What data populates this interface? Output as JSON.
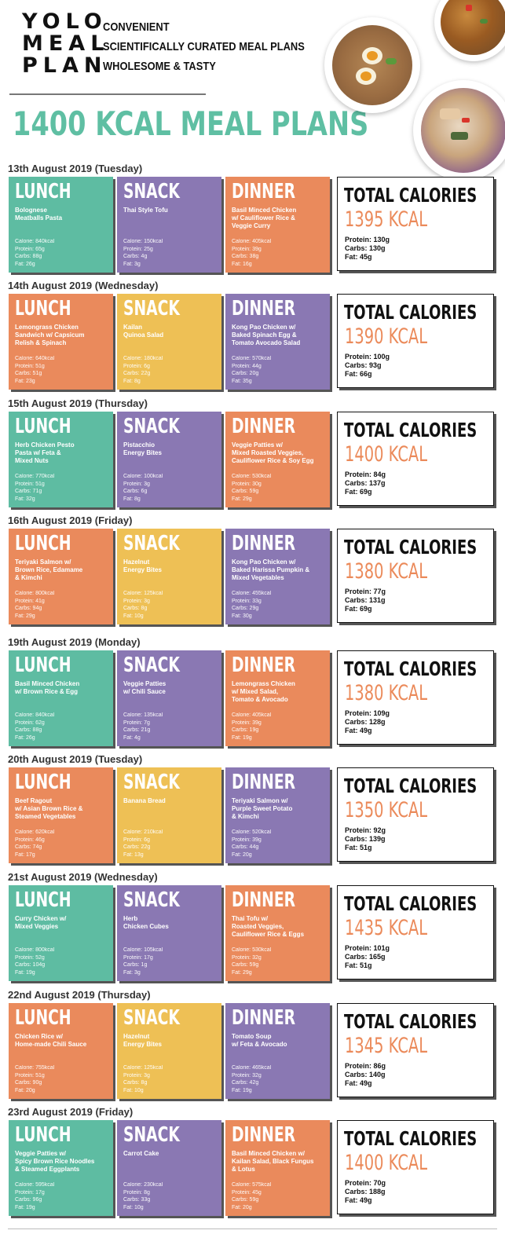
{
  "brand": {
    "logo_lines": [
      "YOLO",
      "MEAL",
      "PLAN"
    ],
    "taglines": [
      "CONVENIENT",
      "SCIENTIFICALLY CURATED MEAL PLANS",
      "WHOLESOME & TASTY"
    ]
  },
  "page_title": "1400 KCAL MEAL PLANS",
  "colors": {
    "teal": "#5ebca2",
    "purple": "#8a78b3",
    "orange": "#ea8a5c",
    "yellow": "#eec055",
    "title": "#5fbfa3",
    "kcal": "#eb8a5a"
  },
  "days": [
    {
      "date": "13th August 2019 (Tuesday)",
      "meals": [
        {
          "kind": "LUNCH",
          "color": "#5ebca2",
          "name": "Bolognese\nMeatballs Pasta",
          "calorie": "Calorie: 840kcal",
          "protein": "Protein: 65g",
          "carbs": "Carbs: 88g",
          "fat": "Fat: 26g"
        },
        {
          "kind": "SNACK",
          "color": "#8a78b3",
          "name": "Thai Style Tofu",
          "calorie": "Calorie: 150kcal",
          "protein": "Protein: 25g",
          "carbs": "Carbs: 4g",
          "fat": "Fat: 3g"
        },
        {
          "kind": "DINNER",
          "color": "#ea8a5c",
          "name": "Basil Minced Chicken\nw/ Cauliflower Rice &\nVeggie Curry",
          "calorie": "Calorie: 405kcal",
          "protein": "Protein: 39g",
          "carbs": "Carbs: 38g",
          "fat": "Fat: 16g"
        }
      ],
      "total": {
        "label": "TOTAL CALORIES",
        "kcal": "1395 KCAL",
        "protein": "Protein: 130g",
        "carbs": "Carbs: 130g",
        "fat": "Fat: 45g"
      }
    },
    {
      "date": "14th August 2019 (Wednesday)",
      "meals": [
        {
          "kind": "LUNCH",
          "color": "#ea8a5c",
          "name": "Lemongrass Chicken\nSandwich w/ Capsicum\nRelish & Spinach",
          "calorie": "Calorie: 640kcal",
          "protein": "Protein: 51g",
          "carbs": "Carbs: 51g",
          "fat": "Fat: 23g"
        },
        {
          "kind": "SNACK",
          "color": "#eec055",
          "name": "Kailan\nQuinoa Salad",
          "calorie": "Calorie: 180kcal",
          "protein": "Protein: 6g",
          "carbs": "Carbs: 22g",
          "fat": "Fat: 8g"
        },
        {
          "kind": "DINNER",
          "color": "#8a78b3",
          "name": "Kong Pao Chicken w/\nBaked Spinach Egg &\nTomato Avocado Salad",
          "calorie": "Calorie: 570kcal",
          "protein": "Protein: 44g",
          "carbs": "Carbs: 20g",
          "fat": "Fat: 35g"
        }
      ],
      "total": {
        "label": "TOTAL CALORIES",
        "kcal": "1390 KCAL",
        "protein": "Protein: 100g",
        "carbs": "Carbs: 93g",
        "fat": "Fat: 66g"
      }
    },
    {
      "date": "15th August 2019 (Thursday)",
      "meals": [
        {
          "kind": "LUNCH",
          "color": "#5ebca2",
          "name": "Herb Chicken Pesto\nPasta w/ Feta &\nMixed Nuts",
          "calorie": "Calorie: 770kcal",
          "protein": "Protein: 51g",
          "carbs": "Carbs: 71g",
          "fat": "Fat: 32g"
        },
        {
          "kind": "SNACK",
          "color": "#8a78b3",
          "name": "Pistacchio\nEnergy Bites",
          "calorie": "Calorie: 100kcal",
          "protein": "Protein: 3g",
          "carbs": "Carbs: 6g",
          "fat": "Fat: 8g"
        },
        {
          "kind": "DINNER",
          "color": "#ea8a5c",
          "name": "Veggie Patties w/\nMixed Roasted Veggies,\nCauliflower Rice & Soy Egg",
          "calorie": "Calorie: 530kcal",
          "protein": "Protein: 30g",
          "carbs": "Carbs: 59g",
          "fat": "Fat: 29g"
        }
      ],
      "total": {
        "label": "TOTAL CALORIES",
        "kcal": "1400 KCAL",
        "protein": "Protein: 84g",
        "carbs": "Carbs: 137g",
        "fat": "Fat: 69g"
      }
    },
    {
      "date": "16th August 2019 (Friday)",
      "meals": [
        {
          "kind": "LUNCH",
          "color": "#ea8a5c",
          "name": "Teriyaki Salmon w/\nBrown Rice, Edamame\n& Kimchi",
          "calorie": "Calorie: 800kcal",
          "protein": "Protein: 41g",
          "carbs": "Carbs: 94g",
          "fat": "Fat: 29g"
        },
        {
          "kind": "SNACK",
          "color": "#eec055",
          "name": "Hazelnut\nEnergy Bites",
          "calorie": "Calorie: 125kcal",
          "protein": "Protein: 3g",
          "carbs": "Carbs: 8g",
          "fat": "Fat: 10g"
        },
        {
          "kind": "DINNER",
          "color": "#8a78b3",
          "name": "Kong Pao Chicken w/\nBaked Harissa Pumpkin &\nMixed Vegetables",
          "calorie": "Calorie: 455kcal",
          "protein": "Protein: 33g",
          "carbs": "Carbs: 29g",
          "fat": "Fat: 30g"
        }
      ],
      "total": {
        "label": "TOTAL CALORIES",
        "kcal": "1380 KCAL",
        "protein": "Protein: 77g",
        "carbs": "Carbs: 131g",
        "fat": "Fat: 69g"
      }
    },
    {
      "date": "19th August 2019 (Monday)",
      "meals": [
        {
          "kind": "LUNCH",
          "color": "#5ebca2",
          "name": "Basil Minced Chicken\nw/ Brown Rice & Egg",
          "calorie": "Calorie: 840kcal",
          "protein": "Protein: 62g",
          "carbs": "Carbs: 88g",
          "fat": "Fat: 26g"
        },
        {
          "kind": "SNACK",
          "color": "#8a78b3",
          "name": "Veggie Patties\nw/ Chili Sauce",
          "calorie": "Calorie: 135kcal",
          "protein": "Protein: 7g",
          "carbs": "Carbs: 21g",
          "fat": "Fat: 4g"
        },
        {
          "kind": "DINNER",
          "color": "#ea8a5c",
          "name": "Lemongrass Chicken\nw/ Mixed Salad,\nTomato & Avocado",
          "calorie": "Calorie: 405kcal",
          "protein": "Protein: 39g",
          "carbs": "Carbs: 19g",
          "fat": "Fat: 19g"
        }
      ],
      "total": {
        "label": "TOTAL CALORIES",
        "kcal": "1380 KCAL",
        "protein": "Protein: 109g",
        "carbs": "Carbs: 128g",
        "fat": "Fat: 49g"
      }
    },
    {
      "date": "20th August 2019 (Tuesday)",
      "meals": [
        {
          "kind": "LUNCH",
          "color": "#ea8a5c",
          "name": "Beef Ragout\nw/ Asian Brown Rice &\nSteamed Vegetables",
          "calorie": "Calorie: 620kcal",
          "protein": "Protein: 46g",
          "carbs": "Carbs: 74g",
          "fat": "Fat: 17g"
        },
        {
          "kind": "SNACK",
          "color": "#eec055",
          "name": "Banana Bread",
          "calorie": "Calorie: 210kcal",
          "protein": "Protein: 6g",
          "carbs": "Carbs: 22g",
          "fat": "Fat: 13g"
        },
        {
          "kind": "DINNER",
          "color": "#8a78b3",
          "name": "Teriyaki Salmon w/\nPurple Sweet Potato\n& Kimchi",
          "calorie": "Calorie: 520kcal",
          "protein": "Protein: 39g",
          "carbs": "Carbs: 44g",
          "fat": "Fat: 20g"
        }
      ],
      "total": {
        "label": "TOTAL CALORIES",
        "kcal": "1350 KCAL",
        "protein": "Protein: 92g",
        "carbs": "Carbs: 139g",
        "fat": "Fat: 51g"
      }
    },
    {
      "date": "21st August 2019 (Wednesday)",
      "meals": [
        {
          "kind": "LUNCH",
          "color": "#5ebca2",
          "name": "Curry Chicken w/\nMixed Veggies",
          "calorie": "Calorie: 800kcal",
          "protein": "Protein: 52g",
          "carbs": "Carbs: 104g",
          "fat": "Fat: 19g"
        },
        {
          "kind": "SNACK",
          "color": "#8a78b3",
          "name": "Herb\nChicken Cubes",
          "calorie": "Calorie: 105kcal",
          "protein": "Protein: 17g",
          "carbs": "Carbs: 1g",
          "fat": "Fat: 3g"
        },
        {
          "kind": "DINNER",
          "color": "#ea8a5c",
          "name": "Thai Tofu w/\nRoasted Veggies,\nCauliflower Rice & Eggs",
          "calorie": "Calorie: 530kcal",
          "protein": "Protein: 32g",
          "carbs": "Carbs: 59g",
          "fat": "Fat: 29g"
        }
      ],
      "total": {
        "label": "TOTAL CALORIES",
        "kcal": "1435 KCAL",
        "protein": "Protein: 101g",
        "carbs": "Carbs: 165g",
        "fat": "Fat: 51g"
      }
    },
    {
      "date": "22nd August 2019 (Thursday)",
      "meals": [
        {
          "kind": "LUNCH",
          "color": "#ea8a5c",
          "name": "Chicken Rice w/\nHome-made Chili Sauce",
          "calorie": "Calorie: 755kcal",
          "protein": "Protein: 51g",
          "carbs": "Carbs: 90g",
          "fat": "Fat: 20g"
        },
        {
          "kind": "SNACK",
          "color": "#eec055",
          "name": "Hazelnut\nEnergy Bites",
          "calorie": "Calorie: 125kcal",
          "protein": "Protein: 3g",
          "carbs": "Carbs: 8g",
          "fat": "Fat: 10g"
        },
        {
          "kind": "DINNER",
          "color": "#8a78b3",
          "name": "Tomato Soup\nw/ Feta & Avocado",
          "calorie": "Calorie: 465kcal",
          "protein": "Protein: 32g",
          "carbs": "Carbs: 42g",
          "fat": "Fat: 19g"
        }
      ],
      "total": {
        "label": "TOTAL CALORIES",
        "kcal": "1345 KCAL",
        "protein": "Protein: 86g",
        "carbs": "Carbs: 140g",
        "fat": "Fat: 49g"
      }
    },
    {
      "date": "23rd August 2019 (Friday)",
      "meals": [
        {
          "kind": "LUNCH",
          "color": "#5ebca2",
          "name": "Veggie Patties w/\nSpicy Brown Rice Noodles\n& Steamed Eggplants",
          "calorie": "Calorie: 595kcal",
          "protein": "Protein: 17g",
          "carbs": "Carbs: 96g",
          "fat": "Fat: 19g"
        },
        {
          "kind": "SNACK",
          "color": "#8a78b3",
          "name": "Carrot Cake",
          "calorie": "Calorie: 230kcal",
          "protein": "Protein: 8g",
          "carbs": "Carbs: 33g",
          "fat": "Fat: 10g"
        },
        {
          "kind": "DINNER",
          "color": "#ea8a5c",
          "name": "Basil Minced Chicken w/\nKailan Salad, Black Fungus\n& Lotus",
          "calorie": "Calorie: 575kcal",
          "protein": "Protein: 45g",
          "carbs": "Carbs: 59g",
          "fat": "Fat: 20g"
        }
      ],
      "total": {
        "label": "TOTAL CALORIES",
        "kcal": "1400 KCAL",
        "protein": "Protein: 70g",
        "carbs": "Carbs: 188g",
        "fat": "Fat: 49g"
      }
    }
  ]
}
